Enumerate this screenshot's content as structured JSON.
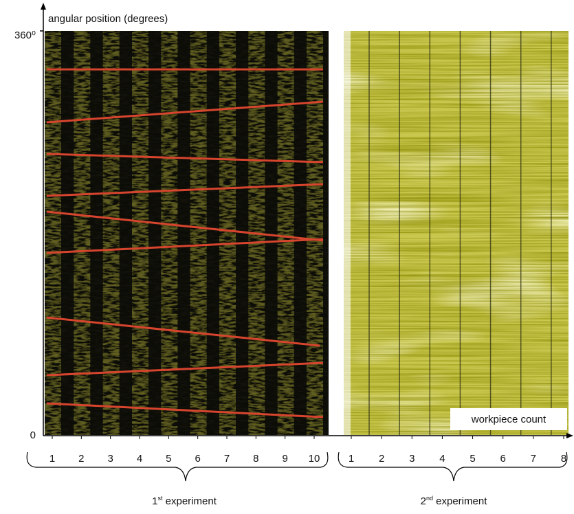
{
  "axis_label": "angular position (degrees)",
  "y_ticks": [
    "360⁰",
    "0"
  ],
  "experiments": [
    {
      "number": "1",
      "suffix": "st",
      "text": "experiment",
      "workpieces": [
        1,
        2,
        3,
        4,
        5,
        6,
        7,
        8,
        9,
        10
      ]
    },
    {
      "number": "2",
      "suffix": "nd",
      "text": "experiment",
      "workpieces": [
        1,
        2,
        3,
        4,
        5,
        6,
        7,
        8
      ]
    }
  ],
  "x_label": "workpiece count"
}
